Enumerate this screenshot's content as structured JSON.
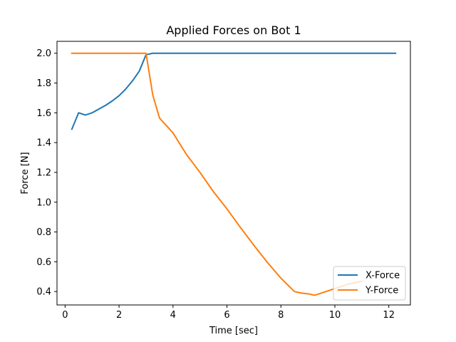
{
  "chart_data": {
    "type": "line",
    "title": "Applied Forces on Bot 1",
    "xlabel": "Time [sec]",
    "ylabel": "Force [N]",
    "xlim": [
      -0.3,
      12.8
    ],
    "ylim": [
      0.31,
      2.08
    ],
    "xticks": [
      0,
      2,
      4,
      6,
      8,
      10,
      12
    ],
    "xtick_labels": [
      "0",
      "2",
      "4",
      "6",
      "8",
      "10",
      "12"
    ],
    "yticks": [
      0.4,
      0.6,
      0.8,
      1.0,
      1.2,
      1.4,
      1.6,
      1.8,
      2.0
    ],
    "ytick_labels": [
      "0.4",
      "0.6",
      "0.8",
      "1.0",
      "1.2",
      "1.4",
      "1.6",
      "1.8",
      "2.0"
    ],
    "grid": false,
    "legend_position": "lower-right",
    "series": [
      {
        "name": "X-Force",
        "color": "#1f77b4",
        "x": [
          0.25,
          0.5,
          0.75,
          1.0,
          1.25,
          1.5,
          1.75,
          2.0,
          2.25,
          2.5,
          2.75,
          3.0,
          3.25,
          3.5,
          4.0,
          5.0,
          6.0,
          7.0,
          8.0,
          9.0,
          10.0,
          11.0,
          12.25
        ],
        "y": [
          1.49,
          1.6,
          1.585,
          1.6,
          1.625,
          1.65,
          1.68,
          1.715,
          1.76,
          1.815,
          1.88,
          1.99,
          2.0,
          2.0,
          2.0,
          2.0,
          2.0,
          2.0,
          2.0,
          2.0,
          2.0,
          2.0,
          2.0
        ]
      },
      {
        "name": "Y-Force",
        "color": "#ff7f0e",
        "x": [
          0.25,
          0.5,
          1.0,
          1.5,
          2.0,
          2.5,
          2.75,
          3.0,
          3.25,
          3.5,
          4.0,
          4.5,
          5.0,
          5.5,
          6.0,
          6.5,
          7.0,
          7.5,
          8.0,
          8.5,
          8.75,
          9.0,
          9.25,
          9.5,
          9.75,
          10.0,
          10.25,
          10.5,
          10.75,
          11.0
        ],
        "y": [
          2.0,
          2.0,
          2.0,
          2.0,
          2.0,
          2.0,
          2.0,
          2.0,
          1.72,
          1.565,
          1.465,
          1.32,
          1.2,
          1.07,
          0.955,
          0.83,
          0.71,
          0.595,
          0.49,
          0.4,
          0.39,
          0.385,
          0.375,
          0.39,
          0.405,
          0.42,
          0.435,
          0.45,
          0.46,
          0.47
        ]
      }
    ]
  }
}
